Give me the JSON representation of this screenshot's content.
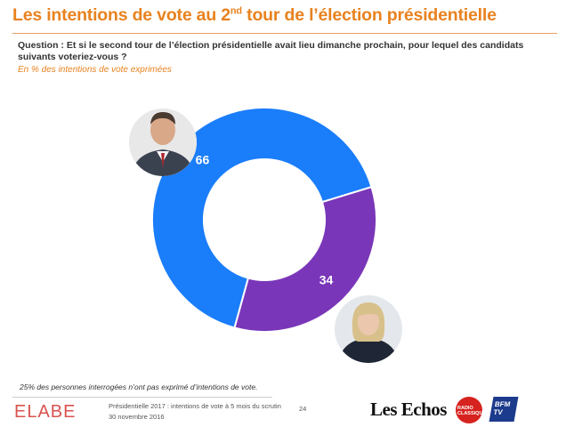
{
  "header": {
    "title_main": "Les intentions de vote au 2",
    "title_sup": "nd",
    "title_rest": " tour de l’élection présidentielle",
    "question": "Question : Et si le second tour de l’élection présidentielle avait lieu dimanche prochain, pour lequel des candidats suivants voteriez-vous ?",
    "unit_note": "En %  des intentions de vote exprimées"
  },
  "chart_data": {
    "type": "pie",
    "variant": "donut",
    "labels": [
      "",
      ""
    ],
    "values": [
      66,
      34
    ],
    "colors": [
      "#1a7dfa",
      "#7a36b8"
    ],
    "data_labels": [
      "66",
      "34"
    ]
  },
  "candidates": [
    {
      "photo_icon": "candidate-photo-top-left"
    },
    {
      "photo_icon": "candidate-photo-bottom-right"
    }
  ],
  "footer": {
    "footnote": "25% des personnes interrogées n’ont pas exprimé d’intentions de vote.",
    "brand": "ELABE",
    "source_line1": "Présidentielle 2017 : intentions de vote à 5 mois du scrutin",
    "source_line2": "30 novembre 2016",
    "page_number": "24",
    "partner1": "Les Echos",
    "partner2": "RADIO CLASSIQUE",
    "partner3": "BFM TV"
  }
}
